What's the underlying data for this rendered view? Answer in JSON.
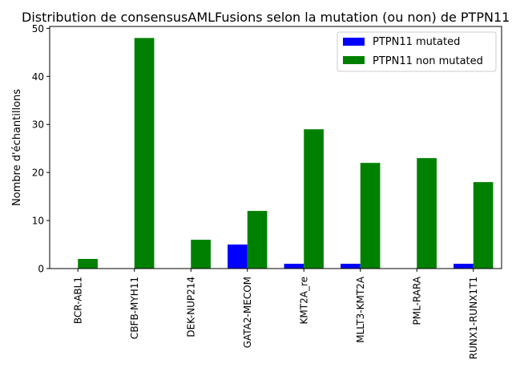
{
  "chart_data": {
    "type": "bar",
    "title": "Distribution de consensusAMLFusions selon la mutation (ou non) de PTPN11",
    "xlabel": "",
    "ylabel": "Nombre d'échantillons",
    "ylim": [
      0,
      50.4
    ],
    "yticks": [
      0,
      10,
      20,
      30,
      40,
      50
    ],
    "grid": false,
    "legend_position": "top-right",
    "categories": [
      "BCR-ABL1",
      "CBFB-MYH11",
      "DEK-NUP214",
      "GATA2-MECOM",
      "KMT2A_re",
      "MLLT3-KMT2A",
      "PML-RARA",
      "RUNX1-RUNX1T1"
    ],
    "series": [
      {
        "name": "PTPN11 mutated",
        "color": "#0000ff",
        "values": [
          0,
          0,
          0,
          5,
          1,
          1,
          0,
          1
        ]
      },
      {
        "name": "PTPN11 non mutated",
        "color": "#008000",
        "values": [
          2,
          48,
          6,
          12,
          29,
          22,
          23,
          18
        ]
      }
    ]
  }
}
